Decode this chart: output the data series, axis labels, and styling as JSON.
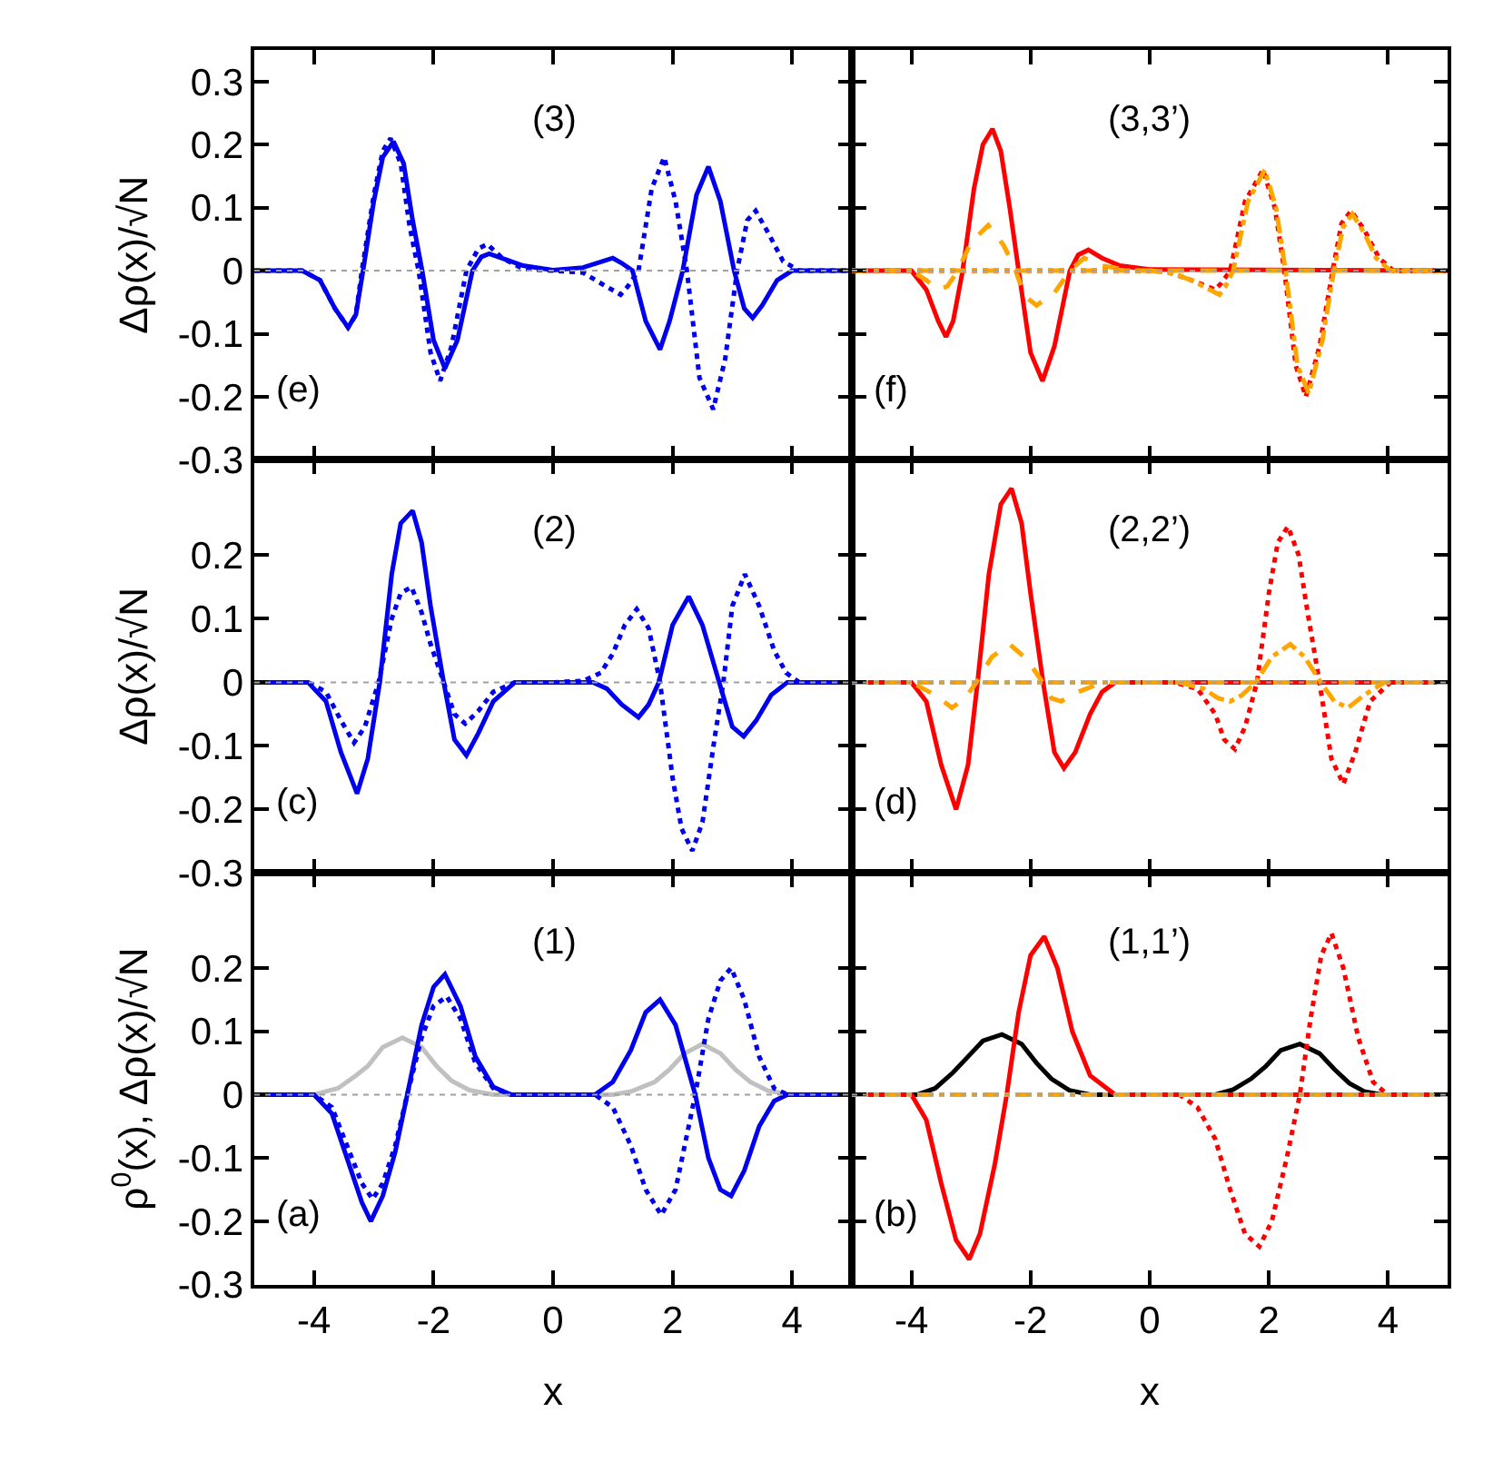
{
  "chart_data": [
    {
      "type": "line",
      "xlim": [
        -5,
        5
      ],
      "ylim": [
        -0.3,
        0.35
      ],
      "xticks": [
        -4,
        -2,
        0,
        2,
        4
      ],
      "yticks": [
        -0.3,
        -0.2,
        -0.1,
        0,
        0.1,
        0.2,
        0.3
      ],
      "tick_labels": "y",
      "ylabel": "Δρ(x)/√N",
      "annotations": [
        "(3)",
        "(e)"
      ],
      "ref_lines": [
        {
          "axis": "y",
          "value": 0,
          "color": "#a0a0a0",
          "line_style": "dotted"
        }
      ],
      "series": [
        {
          "color": "#0000ee",
          "line_style": "dotted",
          "x": [
            -5,
            -4.2,
            -3.9,
            -3.65,
            -3.43,
            -3.3,
            -3.2,
            -3.0,
            -2.85,
            -2.72,
            -2.55,
            -2.4,
            -2.25,
            -2.05,
            -1.89,
            -1.7,
            -1.45,
            -1.25,
            -1.1,
            -0.85,
            -0.5,
            0,
            0.5,
            0.8,
            1.13,
            1.25,
            1.43,
            1.65,
            1.86,
            2.05,
            2.24,
            2.45,
            2.68,
            2.88,
            3.08,
            3.25,
            3.39,
            3.6,
            3.85,
            4.12,
            5
          ],
          "values": [
            0,
            0,
            -0.015,
            -0.06,
            -0.09,
            -0.07,
            0,
            0.12,
            0.19,
            0.21,
            0.17,
            0.07,
            0,
            -0.13,
            -0.175,
            -0.12,
            0,
            0.035,
            0.042,
            0.02,
            0.003,
            0,
            -0.003,
            -0.02,
            -0.038,
            -0.025,
            0,
            0.13,
            0.18,
            0.11,
            0,
            -0.17,
            -0.22,
            -0.14,
            0,
            0.08,
            0.095,
            0.06,
            0.015,
            0,
            0
          ]
        },
        {
          "color": "#0000ee",
          "line_style": "solid",
          "x": [
            -5,
            -4.2,
            -3.9,
            -3.65,
            -3.43,
            -3.3,
            -3.18,
            -3.0,
            -2.85,
            -2.67,
            -2.5,
            -2.35,
            -2.19,
            -2.0,
            -1.81,
            -1.6,
            -1.35,
            -1.2,
            -1.07,
            -0.8,
            -0.5,
            0,
            0.5,
            0.8,
            1.0,
            1.15,
            1.33,
            1.55,
            1.79,
            1.95,
            2.17,
            2.4,
            2.6,
            2.8,
            3.03,
            3.2,
            3.34,
            3.5,
            3.75,
            4.0,
            5
          ],
          "values": [
            0,
            0,
            -0.015,
            -0.06,
            -0.09,
            -0.07,
            0,
            0.11,
            0.18,
            0.205,
            0.17,
            0.08,
            0,
            -0.11,
            -0.155,
            -0.11,
            0,
            0.022,
            0.027,
            0.018,
            0.008,
            0.001,
            0.005,
            0.014,
            0.02,
            0.012,
            0,
            -0.08,
            -0.125,
            -0.08,
            0,
            0.12,
            0.165,
            0.11,
            0,
            -0.06,
            -0.075,
            -0.055,
            -0.015,
            0,
            0
          ]
        }
      ]
    },
    {
      "type": "line",
      "xlim": [
        -5,
        5
      ],
      "ylim": [
        -0.3,
        0.35
      ],
      "xticks": [
        -4,
        -2,
        0,
        2,
        4
      ],
      "yticks": [
        -0.3,
        -0.2,
        -0.1,
        0,
        0.1,
        0.2,
        0.3
      ],
      "tick_labels": false,
      "annotations": [
        "(3,3’)",
        "(f)"
      ],
      "ref_lines": [
        {
          "axis": "y",
          "value": 0,
          "color": "#a0a0a0",
          "line_style": "dotted"
        }
      ],
      "series": [
        {
          "color": "#ff0000",
          "line_style": "solid",
          "x": [
            -5,
            -4.0,
            -3.75,
            -3.55,
            -3.42,
            -3.3,
            -3.14,
            -2.95,
            -2.8,
            -2.64,
            -2.5,
            -2.35,
            -2.2,
            -2.0,
            -1.8,
            -1.6,
            -1.34,
            -1.2,
            -1.03,
            -0.8,
            -0.5,
            0,
            5
          ],
          "values": [
            0,
            0,
            -0.03,
            -0.08,
            -0.105,
            -0.08,
            0,
            0.13,
            0.2,
            0.225,
            0.19,
            0.1,
            0,
            -0.13,
            -0.175,
            -0.12,
            0,
            0.025,
            0.033,
            0.02,
            0.008,
            0.002,
            0
          ]
        },
        {
          "color": "#ffa500",
          "line_style": "dashed",
          "x": [
            -5,
            -4.0,
            -3.75,
            -3.55,
            -3.4,
            -3.22,
            -3.0,
            -2.71,
            -2.45,
            -2.25,
            -2.1,
            -1.9,
            -1.6,
            -1.34,
            -1.1,
            -0.8,
            -0.3,
            5
          ],
          "values": [
            0,
            0,
            -0.015,
            -0.03,
            -0.025,
            0,
            0.045,
            0.072,
            0.04,
            0,
            -0.04,
            -0.055,
            -0.035,
            0,
            0.02,
            0.008,
            0,
            0
          ]
        },
        {
          "color": "#ff0000",
          "line_style": "dotted",
          "x": [
            -5,
            0,
            0.3,
            0.7,
            1.1,
            1.2,
            1.35,
            1.6,
            1.9,
            2.1,
            2.26,
            2.45,
            2.62,
            2.85,
            3.07,
            3.22,
            3.38,
            3.6,
            3.85,
            4.09,
            5
          ],
          "values": [
            0,
            0,
            -0.002,
            -0.015,
            -0.03,
            -0.02,
            0,
            0.11,
            0.16,
            0.1,
            0,
            -0.15,
            -0.2,
            -0.12,
            0,
            0.075,
            0.095,
            0.065,
            0.02,
            0,
            0
          ]
        },
        {
          "color": "#ffa500",
          "line_style": "dashdot",
          "x": [
            -5,
            0,
            0.3,
            0.7,
            1.17,
            1.27,
            1.4,
            1.65,
            1.93,
            2.12,
            2.28,
            2.48,
            2.67,
            2.9,
            3.09,
            3.25,
            3.4,
            3.6,
            3.8,
            4.04,
            5
          ],
          "values": [
            0,
            0,
            -0.002,
            -0.015,
            -0.038,
            -0.025,
            0,
            0.11,
            0.16,
            0.1,
            0,
            -0.15,
            -0.195,
            -0.11,
            0,
            0.07,
            0.09,
            0.06,
            0.02,
            0,
            0
          ]
        }
      ]
    },
    {
      "type": "line",
      "xlim": [
        -5,
        5
      ],
      "ylim": [
        -0.3,
        0.35
      ],
      "xticks": [
        -4,
        -2,
        0,
        2,
        4
      ],
      "yticks": [
        -0.3,
        -0.2,
        -0.1,
        0,
        0.1,
        0.2
      ],
      "tick_labels": "y",
      "ylabel": "Δρ(x)/√N",
      "annotations": [
        "(2)",
        "(c)"
      ],
      "ref_lines": [
        {
          "axis": "y",
          "value": 0,
          "color": "#a0a0a0",
          "line_style": "dotted"
        }
      ],
      "series": [
        {
          "color": "#0000ee",
          "line_style": "dotted",
          "x": [
            -5,
            -4.1,
            -3.8,
            -3.55,
            -3.33,
            -3.15,
            -2.92,
            -2.7,
            -2.55,
            -2.37,
            -2.2,
            -2.05,
            -1.83,
            -1.65,
            -1.47,
            -1.25,
            -1.0,
            -0.64,
            0,
            0.5,
            0.8,
            1.0,
            1.2,
            1.4,
            1.6,
            1.79,
            2.0,
            2.15,
            2.33,
            2.5,
            2.7,
            2.85,
            3.0,
            3.21,
            3.45,
            3.7,
            3.9,
            4.12,
            5
          ],
          "values": [
            0,
            0,
            -0.015,
            -0.06,
            -0.095,
            -0.07,
            0,
            0.1,
            0.14,
            0.15,
            0.11,
            0.06,
            0,
            -0.05,
            -0.065,
            -0.045,
            -0.015,
            0,
            0,
            0.002,
            0.015,
            0.045,
            0.09,
            0.115,
            0.085,
            0,
            -0.15,
            -0.23,
            -0.265,
            -0.22,
            -0.09,
            0,
            0.12,
            0.17,
            0.12,
            0.05,
            0.015,
            0,
            0
          ]
        },
        {
          "color": "#0000ee",
          "line_style": "solid",
          "x": [
            -5,
            -4.1,
            -3.8,
            -3.55,
            -3.28,
            -3.1,
            -2.9,
            -2.7,
            -2.55,
            -2.35,
            -2.2,
            -2.05,
            -1.83,
            -1.65,
            -1.45,
            -1.25,
            -1.0,
            -0.64,
            0,
            0.67,
            0.9,
            1.15,
            1.43,
            1.6,
            1.77,
            2.0,
            2.27,
            2.5,
            2.78,
            3.0,
            3.19,
            3.4,
            3.65,
            3.92,
            5
          ],
          "values": [
            0,
            0,
            -0.03,
            -0.11,
            -0.175,
            -0.12,
            0,
            0.17,
            0.25,
            0.27,
            0.22,
            0.12,
            0,
            -0.09,
            -0.115,
            -0.08,
            -0.03,
            0,
            0,
            0,
            -0.01,
            -0.035,
            -0.055,
            -0.035,
            0,
            0.09,
            0.135,
            0.09,
            0,
            -0.07,
            -0.085,
            -0.06,
            -0.02,
            0,
            0
          ]
        }
      ]
    },
    {
      "type": "line",
      "xlim": [
        -5,
        5
      ],
      "ylim": [
        -0.3,
        0.35
      ],
      "xticks": [
        -4,
        -2,
        0,
        2,
        4
      ],
      "yticks": [
        -0.3,
        -0.2,
        -0.1,
        0,
        0.1,
        0.2
      ],
      "tick_labels": false,
      "annotations": [
        "(2,2’)",
        "(d)"
      ],
      "ref_lines": [
        {
          "axis": "y",
          "value": 0,
          "color": "#a0a0a0",
          "line_style": "dotted"
        }
      ],
      "series": [
        {
          "color": "#ff0000",
          "line_style": "solid",
          "x": [
            -5,
            -4.0,
            -3.75,
            -3.5,
            -3.25,
            -3.05,
            -2.89,
            -2.7,
            -2.5,
            -2.32,
            -2.15,
            -2.0,
            -1.79,
            -1.6,
            -1.44,
            -1.25,
            -1.0,
            -0.8,
            -0.58,
            5
          ],
          "values": [
            0,
            0,
            -0.03,
            -0.13,
            -0.2,
            -0.13,
            0,
            0.17,
            0.28,
            0.305,
            0.25,
            0.14,
            0,
            -0.11,
            -0.135,
            -0.11,
            -0.05,
            -0.015,
            0,
            0
          ]
        },
        {
          "color": "#ffa500",
          "line_style": "dashed",
          "x": [
            -5,
            -4.0,
            -3.6,
            -3.32,
            -3.1,
            -2.91,
            -2.65,
            -2.35,
            -2.05,
            -1.8,
            -1.65,
            -1.49,
            -1.2,
            -0.78,
            5
          ],
          "values": [
            0,
            0,
            -0.02,
            -0.04,
            -0.025,
            0,
            0.04,
            0.06,
            0.035,
            0,
            -0.025,
            -0.03,
            -0.015,
            0,
            0
          ]
        },
        {
          "color": "#ff0000",
          "line_style": "dotted",
          "x": [
            -5,
            0.4,
            0.8,
            1.1,
            1.25,
            1.43,
            1.6,
            1.8,
            2.0,
            2.15,
            2.32,
            2.5,
            2.65,
            2.85,
            3.05,
            3.25,
            3.45,
            3.7,
            4.04,
            5
          ],
          "values": [
            0,
            0,
            -0.01,
            -0.05,
            -0.09,
            -0.105,
            -0.07,
            0,
            0.14,
            0.22,
            0.245,
            0.2,
            0.11,
            0,
            -0.12,
            -0.16,
            -0.11,
            -0.03,
            0,
            0
          ]
        },
        {
          "color": "#ffa500",
          "line_style": "dashdot",
          "x": [
            -5,
            0.5,
            0.9,
            1.15,
            1.35,
            1.55,
            1.78,
            2.05,
            2.36,
            2.6,
            2.87,
            3.1,
            3.33,
            3.6,
            3.94,
            5
          ],
          "values": [
            0,
            0,
            -0.01,
            -0.025,
            -0.03,
            -0.02,
            0,
            0.04,
            0.06,
            0.04,
            0,
            -0.03,
            -0.04,
            -0.02,
            0,
            0
          ]
        }
      ]
    },
    {
      "type": "line",
      "xlim": [
        -5,
        5
      ],
      "ylim": [
        -0.3,
        0.35
      ],
      "xticks": [
        -4,
        -2,
        0,
        2,
        4
      ],
      "yticks": [
        -0.3,
        -0.2,
        -0.1,
        0,
        0.1,
        0.2
      ],
      "xlabel": "x",
      "ylabel": "ρ$^{0}$(x), Δρ(x)/√N",
      "annotations": [
        "(1)",
        "(a)"
      ],
      "ref_lines": [
        {
          "axis": "y",
          "value": 0,
          "color": "#a0a0a0",
          "line_style": "dotted"
        }
      ],
      "series": [
        {
          "color": "#c0c0c0",
          "line_style": "solid",
          "x": [
            -5,
            -4.0,
            -3.6,
            -3.3,
            -3.1,
            -2.85,
            -2.52,
            -2.2,
            -1.95,
            -1.7,
            -1.4,
            -1.0,
            0,
            1.0,
            1.3,
            1.7,
            1.95,
            2.2,
            2.5,
            2.8,
            3.05,
            3.3,
            3.6,
            4.0,
            5
          ],
          "values": [
            0,
            0,
            0.01,
            0.03,
            0.045,
            0.075,
            0.09,
            0.075,
            0.045,
            0.022,
            0.007,
            0,
            0,
            0,
            0.005,
            0.02,
            0.04,
            0.065,
            0.08,
            0.065,
            0.04,
            0.02,
            0.006,
            0,
            0
          ]
        },
        {
          "color": "#0000ee",
          "line_style": "dotted",
          "x": [
            -5,
            -4.0,
            -3.7,
            -3.45,
            -3.2,
            -3.02,
            -2.85,
            -2.64,
            -2.44,
            -2.2,
            -2.0,
            -1.78,
            -1.55,
            -1.3,
            -1.0,
            -0.7,
            0,
            0.7,
            1.0,
            1.3,
            1.55,
            1.81,
            2.05,
            2.38,
            2.6,
            2.8,
            2.98,
            3.2,
            3.45,
            3.7,
            3.92,
            5
          ],
          "values": [
            0,
            0,
            -0.02,
            -0.08,
            -0.14,
            -0.165,
            -0.14,
            -0.08,
            0,
            0.09,
            0.14,
            0.155,
            0.12,
            0.05,
            0.01,
            0,
            0,
            0,
            -0.02,
            -0.08,
            -0.15,
            -0.19,
            -0.15,
            0,
            0.12,
            0.18,
            0.2,
            0.15,
            0.06,
            0.01,
            0,
            0
          ]
        },
        {
          "color": "#0000ee",
          "line_style": "solid",
          "x": [
            -5,
            -4.0,
            -3.7,
            -3.45,
            -3.2,
            -3.05,
            -2.85,
            -2.64,
            -2.44,
            -2.2,
            -2.0,
            -1.81,
            -1.55,
            -1.3,
            -1.0,
            -0.7,
            0,
            0.7,
            1.0,
            1.3,
            1.55,
            1.79,
            2.05,
            2.38,
            2.6,
            2.8,
            2.98,
            3.2,
            3.45,
            3.7,
            3.92,
            5
          ],
          "values": [
            0,
            0,
            -0.03,
            -0.1,
            -0.17,
            -0.2,
            -0.16,
            -0.09,
            0,
            0.11,
            0.17,
            0.19,
            0.14,
            0.06,
            0.012,
            0,
            0,
            0,
            0.02,
            0.07,
            0.13,
            0.15,
            0.11,
            0,
            -0.1,
            -0.15,
            -0.16,
            -0.12,
            -0.05,
            -0.01,
            0,
            0
          ]
        }
      ]
    },
    {
      "type": "line",
      "xlim": [
        -5,
        5
      ],
      "ylim": [
        -0.3,
        0.35
      ],
      "xticks": [
        -4,
        -2,
        0,
        2,
        4
      ],
      "yticks": [
        -0.3,
        -0.2,
        -0.1,
        0,
        0.1,
        0.2
      ],
      "tick_labels": "x",
      "xlabel": "x",
      "annotations": [
        "(1,1’)",
        "(b)"
      ],
      "ref_lines": [
        {
          "axis": "y",
          "value": 0,
          "color": "#a0a0a0",
          "line_style": "dotted"
        }
      ],
      "series": [
        {
          "color": "#000000",
          "line_style": "solid",
          "x": [
            -5,
            -3.9,
            -3.6,
            -3.3,
            -3.05,
            -2.8,
            -2.48,
            -2.15,
            -1.9,
            -1.65,
            -1.35,
            -1.0,
            0,
            1.1,
            1.4,
            1.7,
            1.95,
            2.2,
            2.52,
            2.85,
            3.1,
            3.35,
            3.6,
            3.9,
            5
          ],
          "values": [
            0,
            0,
            0.01,
            0.035,
            0.06,
            0.085,
            0.095,
            0.08,
            0.05,
            0.025,
            0.007,
            0,
            0,
            0,
            0.008,
            0.025,
            0.045,
            0.07,
            0.08,
            0.065,
            0.04,
            0.018,
            0.005,
            0,
            0
          ]
        },
        {
          "color": "#ff0000",
          "line_style": "solid",
          "x": [
            -5,
            -4.0,
            -3.75,
            -3.5,
            -3.25,
            -3.03,
            -2.85,
            -2.6,
            -2.4,
            -2.2,
            -2.0,
            -1.77,
            -1.55,
            -1.3,
            -1.0,
            -0.58,
            5
          ],
          "values": [
            0,
            0,
            -0.04,
            -0.14,
            -0.23,
            -0.26,
            -0.22,
            -0.11,
            0,
            0.13,
            0.22,
            0.25,
            0.2,
            0.1,
            0.03,
            0,
            0
          ]
        },
        {
          "color": "#ff0000",
          "line_style": "dotted",
          "x": [
            -5,
            0.5,
            0.8,
            1.1,
            1.35,
            1.6,
            1.84,
            2.05,
            2.3,
            2.52,
            2.7,
            2.88,
            3.05,
            3.25,
            3.5,
            3.75,
            3.99,
            5
          ],
          "values": [
            0,
            0,
            -0.02,
            -0.07,
            -0.15,
            -0.22,
            -0.24,
            -0.2,
            -0.1,
            0,
            0.12,
            0.22,
            0.255,
            0.2,
            0.09,
            0.02,
            0,
            0
          ]
        },
        {
          "color": "#ffa500",
          "line_style": "dashdot",
          "x": [
            -5,
            5
          ],
          "values": [
            0,
            0
          ]
        }
      ]
    }
  ]
}
